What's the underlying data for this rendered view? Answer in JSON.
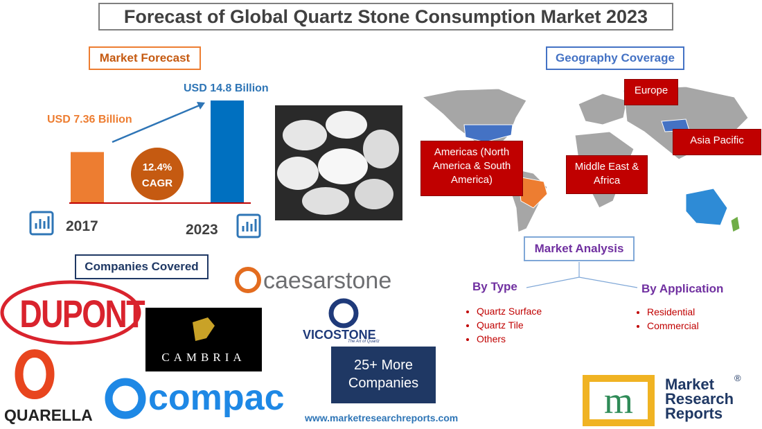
{
  "title": "Forecast of Global Quartz Stone Consumption Market 2023",
  "forecast": {
    "heading": "Market Forecast",
    "categories": [
      "2017",
      "2023"
    ],
    "values": [
      7.36,
      14.8
    ],
    "value_labels": [
      "USD 7.36 Billion",
      "USD 14.8 Billion"
    ],
    "colors": [
      "#ed7d31",
      "#0070c0"
    ],
    "cagr": "12.4%",
    "cagr_caption": "CAGR"
  },
  "geography": {
    "heading": "Geography Coverage",
    "regions": [
      "Europe",
      "Americas (North America & South America)",
      "Middle East & Africa",
      "Asia Pacific"
    ]
  },
  "market_analysis": {
    "heading": "Market Analysis",
    "by_type": {
      "heading": "By Type",
      "items": [
        "Quartz Surface",
        "Quartz Tile",
        "Others"
      ]
    },
    "by_application": {
      "heading": "By Application",
      "items": [
        "Residential",
        "Commercial"
      ]
    }
  },
  "companies": {
    "heading": "Companies Covered",
    "logos": [
      "DUPONT",
      "CAMBRIA",
      "caesarstone",
      "VICOSTONE",
      "The Art of Quartz",
      "QUARELLA",
      "compac"
    ],
    "more": "25+ More Companies"
  },
  "website": "www.marketresearchreports.com",
  "brand": {
    "lines": [
      "Market",
      "Research",
      "Reports"
    ],
    "mark": "®"
  }
}
